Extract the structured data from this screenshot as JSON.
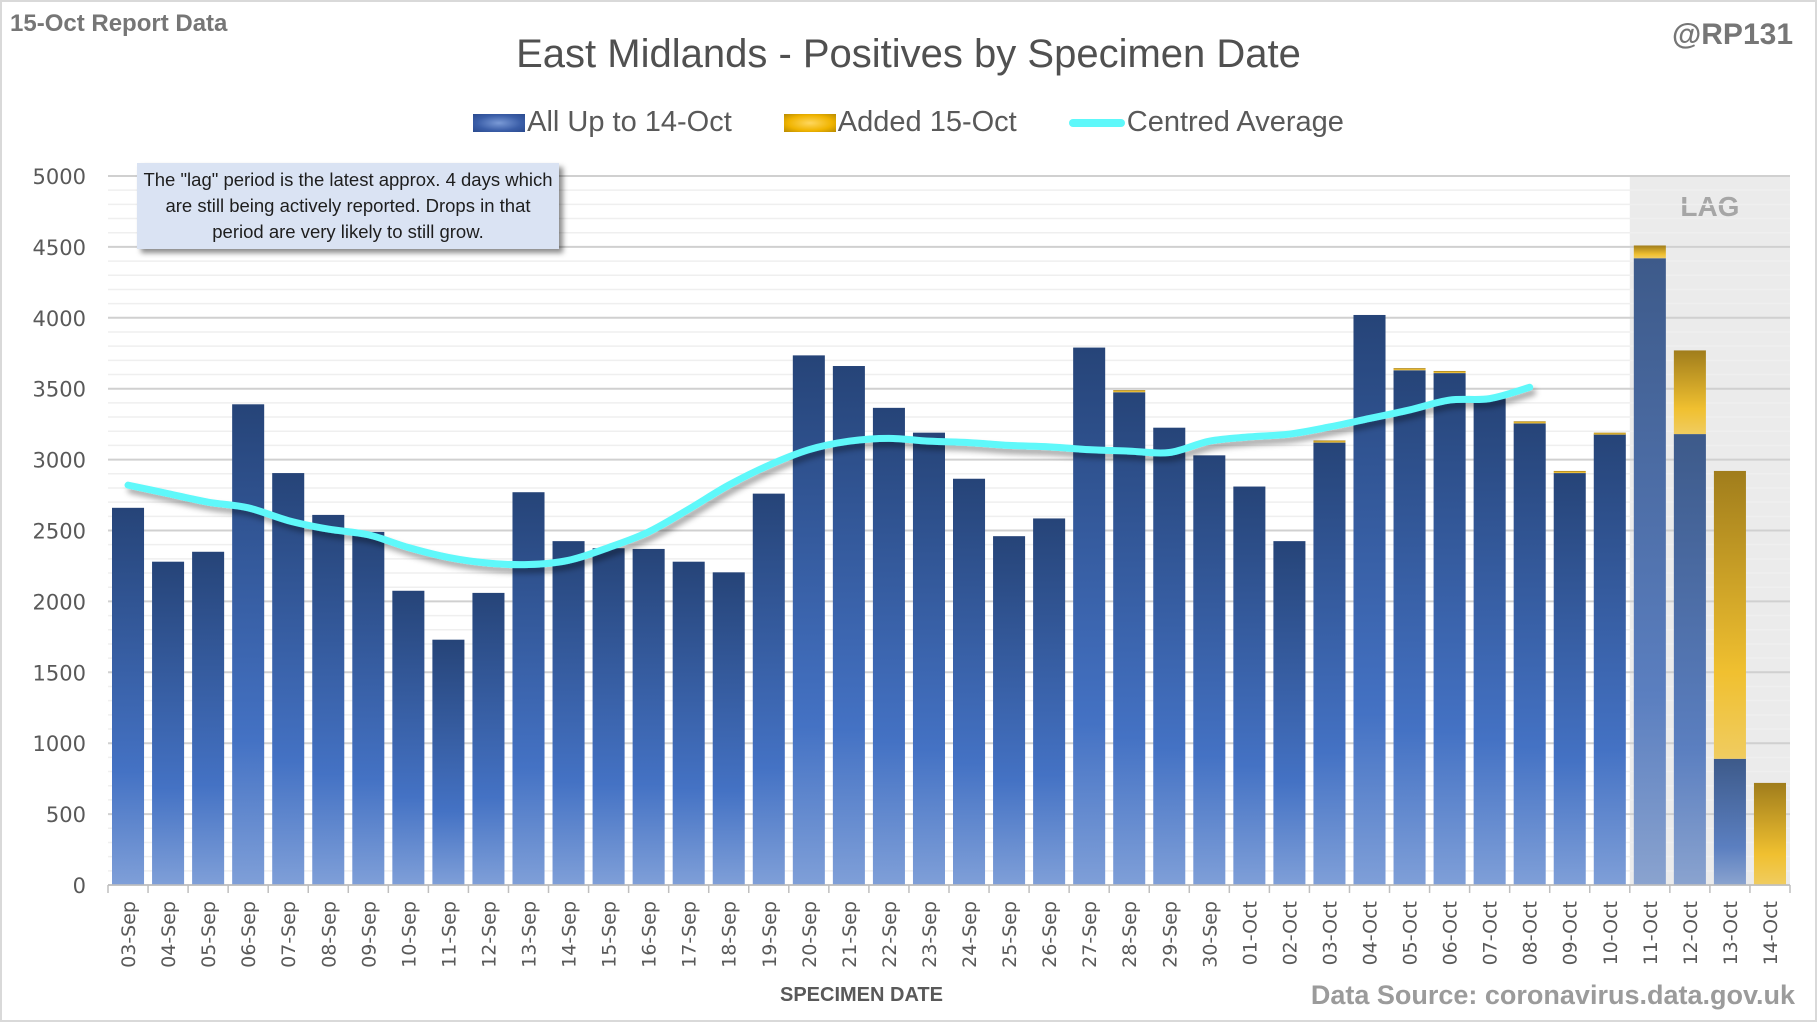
{
  "header": {
    "report_label": "15-Oct Report Data",
    "handle": "@RP131",
    "title": "East Midlands - Positives by Specimen Date"
  },
  "legend": {
    "items": [
      {
        "label": "All Up to 14-Oct",
        "type": "bar",
        "color": "#3b5ea8"
      },
      {
        "label": "Added 15-Oct",
        "type": "bar",
        "color": "#f0b400"
      },
      {
        "label": "Centred Average",
        "type": "line",
        "color": "#5ef8fa"
      }
    ]
  },
  "note": {
    "text": "The \"lag\" period is the latest approx. 4 days which are still being actively reported.  Drops in that period are very likely to still grow."
  },
  "lag_label": "LAG",
  "footer": {
    "axis_title": "SPECIMEN DATE",
    "source": "Data Source: coronavirus.data.gov.uk"
  },
  "colors": {
    "blue_dark": "#264478",
    "blue_light": "#7b9bd8",
    "gold_dark": "#a07d1c",
    "gold_light": "#f0c030",
    "avg_line": "#5ef8fa",
    "lag_shade": "#ebebeb"
  },
  "chart_data": {
    "type": "bar",
    "stacked": true,
    "title": "East Midlands - Positives by Specimen Date",
    "xlabel": "SPECIMEN DATE",
    "ylabel": "",
    "ylim": [
      0,
      5000
    ],
    "yticks": [
      0,
      500,
      1000,
      1500,
      2000,
      2500,
      3000,
      3500,
      4000,
      4500,
      5000
    ],
    "grid": true,
    "legend_position": "top",
    "categories": [
      "03-Sep",
      "04-Sep",
      "05-Sep",
      "06-Sep",
      "07-Sep",
      "08-Sep",
      "09-Sep",
      "10-Sep",
      "11-Sep",
      "12-Sep",
      "13-Sep",
      "14-Sep",
      "15-Sep",
      "16-Sep",
      "17-Sep",
      "18-Sep",
      "19-Sep",
      "20-Sep",
      "21-Sep",
      "22-Sep",
      "23-Sep",
      "24-Sep",
      "25-Sep",
      "26-Sep",
      "27-Sep",
      "28-Sep",
      "29-Sep",
      "30-Sep",
      "01-Oct",
      "02-Oct",
      "03-Oct",
      "04-Oct",
      "05-Oct",
      "06-Oct",
      "07-Oct",
      "08-Oct",
      "09-Oct",
      "10-Oct",
      "11-Oct",
      "12-Oct",
      "13-Oct",
      "14-Oct"
    ],
    "series": [
      {
        "name": "All Up to 14-Oct",
        "values": [
          2660,
          2280,
          2350,
          3390,
          2905,
          2610,
          2490,
          2075,
          1730,
          2060,
          2770,
          2425,
          2375,
          2370,
          2280,
          2205,
          2760,
          3735,
          3660,
          3365,
          3190,
          2865,
          2460,
          2585,
          3790,
          3475,
          3225,
          3030,
          2810,
          2425,
          3120,
          4020,
          3630,
          3610,
          3430,
          3255,
          2905,
          3180,
          4420,
          3180,
          890,
          0
        ]
      },
      {
        "name": "Added 15-Oct",
        "values": [
          0,
          0,
          0,
          0,
          0,
          0,
          0,
          0,
          0,
          0,
          0,
          0,
          0,
          0,
          0,
          0,
          0,
          0,
          0,
          0,
          0,
          0,
          0,
          0,
          0,
          15,
          0,
          0,
          0,
          0,
          15,
          0,
          15,
          15,
          0,
          15,
          15,
          10,
          90,
          590,
          2030,
          720
        ]
      },
      {
        "name": "Centred Average",
        "type": "line",
        "values": [
          2820,
          2760,
          2700,
          2660,
          2570,
          2510,
          2470,
          2380,
          2310,
          2270,
          2260,
          2290,
          2380,
          2490,
          2650,
          2820,
          2960,
          3070,
          3130,
          3150,
          3130,
          3120,
          3100,
          3090,
          3070,
          3060,
          3050,
          3130,
          3160,
          3180,
          3230,
          3290,
          3350,
          3420,
          3430,
          3510,
          null,
          null,
          null,
          null,
          null,
          null
        ]
      }
    ],
    "lag_period": [
      "11-Oct",
      "14-Oct"
    ],
    "annotations": [
      "LAG"
    ]
  }
}
